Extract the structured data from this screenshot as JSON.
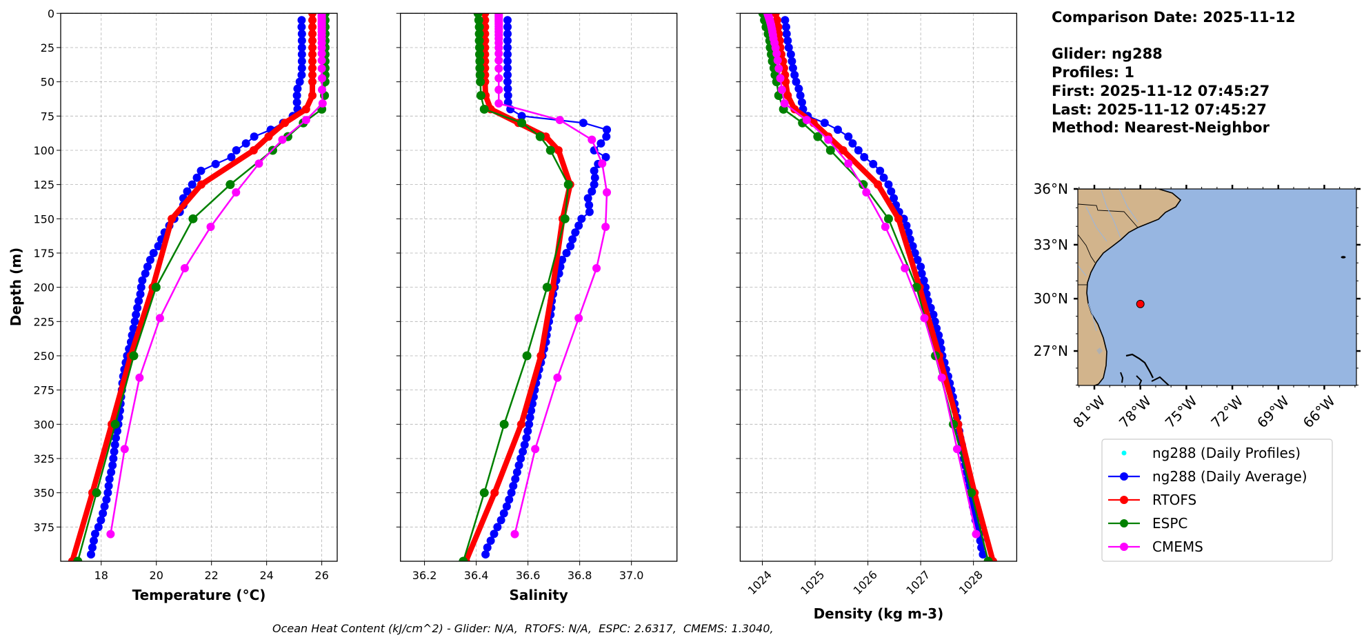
{
  "info": {
    "comparison_date": "Comparison Date: 2025-11-12",
    "glider": "Glider: ng288",
    "profiles": "Profiles: 1",
    "first": "First: 2025-11-12 07:45:27",
    "last": "Last: 2025-11-12 07:45:27",
    "method": "Method: Nearest-Neighbor"
  },
  "footer": "Ocean Heat Content (kJ/cm^2) - Glider: N/A,  RTOFS: N/A,  ESPC: 2.6317,  CMEMS: 1.3040,",
  "chart_data": {
    "type": "line",
    "ylabel": "Depth (m)",
    "ylim": [
      400,
      0
    ],
    "yticks": [
      0,
      25,
      50,
      75,
      100,
      125,
      150,
      175,
      200,
      225,
      250,
      275,
      300,
      325,
      350,
      375
    ],
    "ytick_labels": [
      "0",
      "25",
      "50",
      "75",
      "100",
      "125",
      "150",
      "175",
      "200",
      "225",
      "250",
      "275",
      "300",
      "325",
      "350",
      "375"
    ],
    "grid": true,
    "legend": {
      "position": "right",
      "entries": [
        {
          "key": "profiles",
          "label": "ng288 (Daily Profiles)",
          "color": "#00ffff",
          "style": "dots"
        },
        {
          "key": "glider",
          "label": "ng288 (Daily Average)",
          "color": "#0000ff",
          "style": "line-marker"
        },
        {
          "key": "rtofs",
          "label": "RTOFS",
          "color": "#ff0000",
          "style": "line-marker"
        },
        {
          "key": "espc",
          "label": "ESPC",
          "color": "#008000",
          "style": "line-marker"
        },
        {
          "key": "cmems",
          "label": "CMEMS",
          "color": "#ff00ff",
          "style": "line-marker"
        }
      ]
    },
    "depth_levels": {
      "glider": [
        5,
        10,
        15,
        20,
        25,
        30,
        35,
        40,
        45,
        50,
        55,
        60,
        65,
        70,
        75,
        80,
        85,
        90,
        95,
        100,
        105,
        110,
        115,
        120,
        125,
        130,
        135,
        140,
        145,
        150,
        155,
        160,
        165,
        170,
        175,
        180,
        185,
        190,
        195,
        200,
        205,
        210,
        215,
        220,
        225,
        230,
        235,
        240,
        245,
        250,
        255,
        260,
        265,
        270,
        275,
        280,
        285,
        290,
        295,
        300,
        305,
        310,
        315,
        320,
        325,
        330,
        335,
        340,
        345,
        350,
        355,
        360,
        365,
        370,
        375,
        380,
        385,
        390,
        395
      ],
      "rtofs": [
        0,
        5,
        10,
        15,
        20,
        25,
        30,
        35,
        40,
        45,
        50,
        60,
        70,
        80,
        90,
        100,
        125,
        150,
        200,
        250,
        300,
        350,
        400
      ],
      "espc": [
        0,
        5,
        10,
        15,
        20,
        25,
        30,
        35,
        40,
        45,
        50,
        60,
        70,
        80,
        90,
        100,
        125,
        150,
        200,
        250,
        300,
        350,
        400
      ],
      "cmems": [
        0.5,
        1.5,
        2.6,
        3.8,
        5.1,
        6.4,
        7.9,
        9.6,
        11.4,
        13.5,
        15.8,
        18.5,
        21.6,
        25.2,
        29.4,
        34.4,
        40.3,
        47.4,
        55.8,
        65.8,
        77.9,
        92.3,
        109.7,
        130.7,
        155.9,
        186.1,
        222.5,
        266.0,
        318.1,
        380.2
      ]
    },
    "panels": [
      {
        "key": "temperature",
        "xlabel": "Temperature (°C)",
        "xlim": [
          16.53,
          26.56
        ],
        "xticks": [
          18,
          20,
          22,
          24,
          26
        ],
        "xtick_labels": [
          "18",
          "20",
          "22",
          "24",
          "26"
        ],
        "series": {
          "glider": [
            25.27,
            25.27,
            25.28,
            25.28,
            25.28,
            25.28,
            25.28,
            25.28,
            25.27,
            25.2,
            25.12,
            25.1,
            25.1,
            25.12,
            24.95,
            24.6,
            24.15,
            23.55,
            23.25,
            22.9,
            22.72,
            22.15,
            21.62,
            21.47,
            21.3,
            21.12,
            20.98,
            20.98,
            20.85,
            20.65,
            20.47,
            20.3,
            20.18,
            20.07,
            19.9,
            19.78,
            19.68,
            19.6,
            19.49,
            19.45,
            19.42,
            19.36,
            19.31,
            19.26,
            19.22,
            19.17,
            19.12,
            19.08,
            19.01,
            18.94,
            18.89,
            18.84,
            18.8,
            18.77,
            18.75,
            18.72,
            18.7,
            18.68,
            18.65,
            18.62,
            18.58,
            18.53,
            18.5,
            18.47,
            18.44,
            18.41,
            18.36,
            18.3,
            18.27,
            18.24,
            18.19,
            18.12,
            18.06,
            17.99,
            17.9,
            17.78,
            17.73,
            17.68,
            17.63
          ],
          "rtofs": [
            25.66,
            25.66,
            25.66,
            25.66,
            25.66,
            25.66,
            25.66,
            25.66,
            25.66,
            25.66,
            25.66,
            25.66,
            25.43,
            24.66,
            24.07,
            23.53,
            21.63,
            20.56,
            19.87,
            19.07,
            18.38,
            17.68,
            16.95
          ],
          "espc": [
            26.12,
            26.12,
            26.12,
            26.12,
            26.12,
            26.12,
            26.12,
            26.12,
            26.12,
            26.12,
            26.12,
            26.1,
            26.0,
            25.33,
            24.77,
            24.22,
            22.68,
            21.33,
            19.99,
            19.18,
            18.51,
            17.83,
            17.15
          ],
          "cmems": [
            26.0,
            26.0,
            26.0,
            26.0,
            26.0,
            26.0,
            26.0,
            26.0,
            26.0,
            26.0,
            26.0,
            26.0,
            26.0,
            26.0,
            26.0,
            26.0,
            26.0,
            26.01,
            26.01,
            26.03,
            25.43,
            24.57,
            23.72,
            22.89,
            21.97,
            21.03,
            20.13,
            19.39,
            18.85,
            18.34
          ]
        }
      },
      {
        "key": "salinity",
        "xlabel": "Salinity",
        "xlim": [
          36.107,
          37.176
        ],
        "xticks": [
          36.2,
          36.4,
          36.6,
          36.8,
          37.0
        ],
        "xtick_labels": [
          "36.2",
          "36.4",
          "36.6",
          "36.8",
          "37.0"
        ],
        "series": {
          "glider": [
            36.521,
            36.521,
            36.521,
            36.521,
            36.521,
            36.521,
            36.521,
            36.521,
            36.521,
            36.521,
            36.522,
            36.523,
            36.523,
            36.532,
            36.576,
            36.814,
            36.905,
            36.903,
            36.882,
            36.856,
            36.901,
            36.871,
            36.856,
            36.859,
            36.856,
            36.847,
            36.832,
            36.836,
            36.838,
            36.807,
            36.796,
            36.783,
            36.772,
            36.764,
            36.749,
            36.732,
            36.725,
            36.72,
            36.709,
            36.703,
            36.697,
            36.692,
            36.69,
            36.687,
            36.681,
            36.676,
            36.672,
            36.669,
            36.662,
            36.656,
            36.65,
            36.643,
            36.637,
            36.631,
            36.626,
            36.622,
            36.617,
            36.612,
            36.608,
            36.604,
            36.599,
            36.594,
            36.587,
            36.58,
            36.572,
            36.565,
            36.558,
            36.551,
            36.543,
            36.536,
            36.527,
            36.518,
            36.507,
            36.496,
            36.482,
            36.469,
            36.456,
            36.443,
            36.436
          ],
          "rtofs": [
            36.434,
            36.434,
            36.434,
            36.434,
            36.434,
            36.434,
            36.434,
            36.434,
            36.434,
            36.434,
            36.434,
            36.436,
            36.456,
            36.563,
            36.669,
            36.718,
            36.763,
            36.734,
            36.696,
            36.65,
            36.574,
            36.471,
            36.36
          ],
          "espc": [
            36.407,
            36.41,
            36.412,
            36.412,
            36.412,
            36.413,
            36.413,
            36.414,
            36.414,
            36.415,
            36.416,
            36.418,
            36.431,
            36.576,
            36.647,
            36.687,
            36.756,
            36.743,
            36.674,
            36.596,
            36.508,
            36.431,
            36.35
          ],
          "cmems": [
            36.487,
            36.487,
            36.487,
            36.487,
            36.487,
            36.487,
            36.487,
            36.487,
            36.487,
            36.487,
            36.487,
            36.487,
            36.487,
            36.487,
            36.487,
            36.487,
            36.487,
            36.487,
            36.487,
            36.487,
            36.723,
            36.847,
            36.887,
            36.905,
            36.9,
            36.865,
            36.796,
            36.714,
            36.628,
            36.549
          ]
        }
      },
      {
        "key": "density",
        "xlabel": "Density (kg m-3)",
        "xlim": [
          1023.58,
          1028.82
        ],
        "xticks": [
          1024,
          1025,
          1026,
          1027,
          1028
        ],
        "xtick_labels": [
          "1024",
          "1025",
          "1026",
          "1027",
          "1028"
        ],
        "series": {
          "glider": [
            1024.43,
            1024.45,
            1024.46,
            1024.48,
            1024.5,
            1024.54,
            1024.56,
            1024.58,
            1024.61,
            1024.64,
            1024.69,
            1024.72,
            1024.75,
            1024.77,
            1024.86,
            1025.18,
            1025.43,
            1025.63,
            1025.71,
            1025.82,
            1025.93,
            1026.1,
            1026.23,
            1026.3,
            1026.39,
            1026.44,
            1026.49,
            1026.53,
            1026.59,
            1026.68,
            1026.73,
            1026.77,
            1026.8,
            1026.85,
            1026.89,
            1026.94,
            1027.0,
            1027.02,
            1027.06,
            1027.09,
            1027.11,
            1027.14,
            1027.19,
            1027.24,
            1027.27,
            1027.3,
            1027.34,
            1027.37,
            1027.39,
            1027.41,
            1027.45,
            1027.48,
            1027.52,
            1027.55,
            1027.58,
            1027.61,
            1027.64,
            1027.66,
            1027.69,
            1027.71,
            1027.73,
            1027.75,
            1027.78,
            1027.8,
            1027.82,
            1027.84,
            1027.87,
            1027.89,
            1027.92,
            1027.95,
            1027.97,
            1027.99,
            1028.02,
            1028.04,
            1028.08,
            1028.11,
            1028.13,
            1028.15,
            1028.18
          ],
          "rtofs": [
            1024.25,
            1024.28,
            1024.3,
            1024.31,
            1024.33,
            1024.34,
            1024.36,
            1024.39,
            1024.41,
            1024.43,
            1024.44,
            1024.48,
            1024.61,
            1024.97,
            1025.25,
            1025.53,
            1026.19,
            1026.58,
            1026.98,
            1027.35,
            1027.71,
            1028.02,
            1028.37
          ],
          "espc": [
            1024.01,
            1024.04,
            1024.07,
            1024.11,
            1024.14,
            1024.15,
            1024.17,
            1024.19,
            1024.22,
            1024.24,
            1024.27,
            1024.31,
            1024.4,
            1024.76,
            1025.05,
            1025.29,
            1025.91,
            1026.39,
            1026.92,
            1027.28,
            1027.62,
            1027.96,
            1028.28
          ],
          "cmems": [
            1024.1,
            1024.11,
            1024.12,
            1024.13,
            1024.14,
            1024.15,
            1024.16,
            1024.17,
            1024.18,
            1024.19,
            1024.2,
            1024.21,
            1024.23,
            1024.25,
            1024.27,
            1024.29,
            1024.31,
            1024.34,
            1024.37,
            1024.42,
            1024.84,
            1025.25,
            1025.63,
            1025.97,
            1026.33,
            1026.7,
            1027.07,
            1027.4,
            1027.69,
            1028.05
          ]
        }
      }
    ]
  },
  "map": {
    "extent": {
      "lon": [
        -82.08,
        -63.97
      ],
      "lat": [
        25.0,
        36.0
      ]
    },
    "lat_ticks": [
      36,
      33,
      30,
      27
    ],
    "lat_labels": [
      "36°N",
      "33°N",
      "30°N",
      "27°N"
    ],
    "lon_ticks": [
      -81,
      -78,
      -75,
      -72,
      -69,
      -66
    ],
    "lon_labels": [
      "81°W",
      "78°W",
      "75°W",
      "72°W",
      "69°W",
      "66°W"
    ],
    "glider_position": {
      "lon": -78.0,
      "lat": 29.7
    },
    "colors": {
      "land": "#d2b48c",
      "ocean": "#97b6e1",
      "marker": "#ff0000",
      "rivers": "#97b6e1"
    }
  }
}
